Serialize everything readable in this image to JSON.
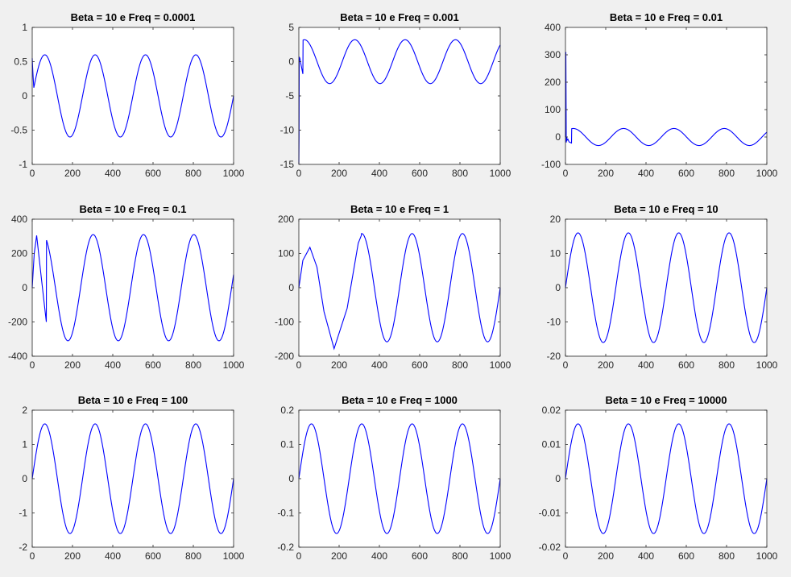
{
  "figure": {
    "background": "#f0f0f0",
    "axes_background": "#ffffff",
    "line_color": "#0000ff"
  },
  "chart_data": [
    {
      "type": "line",
      "title": "Beta = 10 e Freq = 0.0001",
      "xlim": [
        0,
        1000
      ],
      "ylim": [
        -1,
        1
      ],
      "xticks": [
        "0",
        "200",
        "400",
        "600",
        "800",
        "1000"
      ],
      "yticks": [
        "-1",
        "-0.5",
        "0",
        "0.5",
        "1"
      ],
      "series": [
        {
          "shape": "sine",
          "amplitude": 0.6,
          "period": 250,
          "phase": 0,
          "transient": {
            "start": 0.55,
            "end_x": 8
          },
          "samples": []
        }
      ]
    },
    {
      "type": "line",
      "title": "Beta = 10 e Freq = 0.001",
      "xlim": [
        0,
        1000
      ],
      "ylim": [
        -15,
        5
      ],
      "xticks": [
        "0",
        "200",
        "400",
        "600",
        "800",
        "1000"
      ],
      "yticks": [
        "-15",
        "-10",
        "-5",
        "0",
        "5"
      ],
      "series": [
        {
          "shape": "sine",
          "amplitude": 3.2,
          "period": 250,
          "phase": 0.87,
          "transient": null,
          "samples": [
            [
              0,
              -15
            ],
            [
              1,
              -11
            ],
            [
              2,
              0.7
            ],
            [
              5,
              0.5
            ],
            [
              10,
              -0.3
            ],
            [
              20,
              -1.8
            ]
          ]
        }
      ]
    },
    {
      "type": "line",
      "title": "Beta = 10 e Freq = 0.01",
      "xlim": [
        0,
        1000
      ],
      "ylim": [
        -100,
        400
      ],
      "xticks": [
        "0",
        "200",
        "400",
        "600",
        "800",
        "1000"
      ],
      "yticks": [
        "-100",
        "0",
        "100",
        "200",
        "300",
        "400"
      ],
      "series": [
        {
          "shape": "sine",
          "amplitude": 31,
          "period": 250,
          "phase": 0.6,
          "transient": null,
          "samples": [
            [
              0,
              0
            ],
            [
              2,
              310
            ],
            [
              4,
              -20
            ],
            [
              6,
              0
            ],
            [
              8,
              -12
            ],
            [
              12,
              -8
            ],
            [
              18,
              -18
            ],
            [
              30,
              -22
            ]
          ]
        }
      ]
    },
    {
      "type": "line",
      "title": "Beta = 10 e Freq = 0.1",
      "xlim": [
        0,
        1000
      ],
      "ylim": [
        -400,
        400
      ],
      "xticks": [
        "0",
        "200",
        "400",
        "600",
        "800",
        "1000"
      ],
      "yticks": [
        "-400",
        "-200",
        "0",
        "200",
        "400"
      ],
      "series": [
        {
          "shape": "sine",
          "amplitude": 310,
          "period": 250,
          "phase": 0.25,
          "transient": null,
          "samples": [
            [
              0,
              0
            ],
            [
              10,
              200
            ],
            [
              22,
              305
            ],
            [
              45,
              60
            ],
            [
              70,
              -200
            ]
          ]
        }
      ]
    },
    {
      "type": "line",
      "title": "Beta = 10 e Freq = 1",
      "xlim": [
        0,
        1000
      ],
      "ylim": [
        -200,
        200
      ],
      "xticks": [
        "0",
        "200",
        "400",
        "600",
        "800",
        "1000"
      ],
      "yticks": [
        "-200",
        "-100",
        "0",
        "100",
        "200"
      ],
      "series": [
        {
          "shape": "sine",
          "amplitude": 158,
          "period": 250,
          "phase": 0,
          "transient": null,
          "samples": [
            [
              0,
              0
            ],
            [
              20,
              80
            ],
            [
              55,
              118
            ],
            [
              90,
              60
            ],
            [
              125,
              -70
            ],
            [
              175,
              -178
            ],
            [
              240,
              -60
            ],
            [
              295,
              130
            ],
            [
              310,
              152
            ]
          ]
        }
      ]
    },
    {
      "type": "line",
      "title": "Beta = 10 e Freq = 10",
      "xlim": [
        0,
        1000
      ],
      "ylim": [
        -20,
        20
      ],
      "xticks": [
        "0",
        "200",
        "400",
        "600",
        "800",
        "1000"
      ],
      "yticks": [
        "-20",
        "-10",
        "0",
        "10",
        "20"
      ],
      "series": [
        {
          "shape": "sine",
          "amplitude": 16,
          "period": 250,
          "phase": 0,
          "transient": null,
          "samples": []
        }
      ]
    },
    {
      "type": "line",
      "title": "Beta = 10 e Freq = 100",
      "xlim": [
        0,
        1000
      ],
      "ylim": [
        -2,
        2
      ],
      "xticks": [
        "0",
        "200",
        "400",
        "600",
        "800",
        "1000"
      ],
      "yticks": [
        "-2",
        "-1",
        "0",
        "1",
        "2"
      ],
      "series": [
        {
          "shape": "sine",
          "amplitude": 1.6,
          "period": 250,
          "phase": 0,
          "transient": null,
          "samples": []
        }
      ]
    },
    {
      "type": "line",
      "title": "Beta = 10 e Freq = 1000",
      "xlim": [
        0,
        1000
      ],
      "ylim": [
        -0.2,
        0.2
      ],
      "xticks": [
        "0",
        "200",
        "400",
        "600",
        "800",
        "1000"
      ],
      "yticks": [
        "-0.2",
        "-0.1",
        "0",
        "0.1",
        "0.2"
      ],
      "series": [
        {
          "shape": "sine",
          "amplitude": 0.16,
          "period": 250,
          "phase": 0,
          "transient": null,
          "samples": []
        }
      ]
    },
    {
      "type": "line",
      "title": "Beta = 10 e Freq = 10000",
      "xlim": [
        0,
        1000
      ],
      "ylim": [
        -0.02,
        0.02
      ],
      "xticks": [
        "0",
        "200",
        "400",
        "600",
        "800",
        "1000"
      ],
      "yticks": [
        "-0.02",
        "-0.01",
        "0",
        "0.01",
        "0.02"
      ],
      "series": [
        {
          "shape": "sine",
          "amplitude": 0.016,
          "period": 250,
          "phase": 0,
          "transient": null,
          "samples": []
        }
      ]
    }
  ]
}
